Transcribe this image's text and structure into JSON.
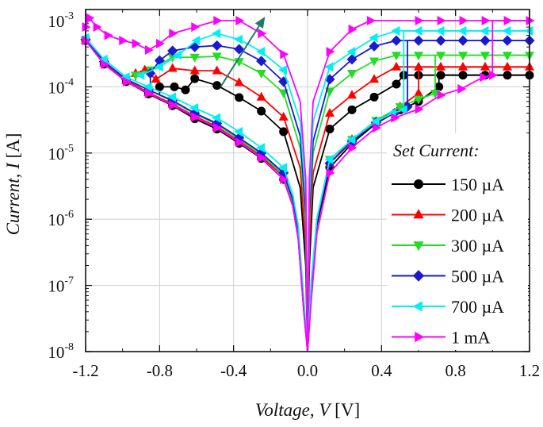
{
  "chart_data": {
    "type": "line",
    "title": "",
    "xlabel": {
      "text": "Voltage, V",
      "unit": "[V]"
    },
    "ylabel": {
      "text": "Current, I",
      "unit": "[A]"
    },
    "xlim": [
      -1.2,
      1.2
    ],
    "ylim": [
      1e-08,
      0.001
    ],
    "yscale": "log",
    "grid": true,
    "x_ticks": [
      "-1.2",
      "-0.8",
      "-0.4",
      "0.0",
      "0.4",
      "0.8",
      "1.2"
    ],
    "x_tick_values": [
      -1.2,
      -0.8,
      -0.4,
      0.0,
      0.4,
      0.8,
      1.2
    ],
    "y_ticks": [
      {
        "base": "10",
        "exp": "-3",
        "value": 0.001
      },
      {
        "base": "10",
        "exp": "-4",
        "value": 0.0001
      },
      {
        "base": "10",
        "exp": "-5",
        "value": 1e-05
      },
      {
        "base": "10",
        "exp": "-6",
        "value": 1e-06
      },
      {
        "base": "10",
        "exp": "-7",
        "value": 1e-07
      },
      {
        "base": "10",
        "exp": "-8",
        "value": 1e-08
      }
    ],
    "legend": {
      "title": "Set Current:",
      "position": "bottom-right"
    },
    "annotation": {
      "type": "arrow",
      "meaning": "increasing set current",
      "color": "#1e7a6a",
      "from": [
        -0.47,
        0.0001
      ],
      "to": [
        -0.23,
        0.00115
      ]
    },
    "series": [
      {
        "name": "150 µA",
        "color": "#000000",
        "marker": "circle",
        "compliance": 0.00015,
        "set_V": 0.71,
        "hrs_pos": [
          [
            0,
            1e-08
          ],
          [
            0.02,
            8e-08
          ],
          [
            0.05,
            8e-07
          ],
          [
            0.12,
            6e-06
          ],
          [
            0.24,
            1.4e-05
          ],
          [
            0.37,
            2.8e-05
          ],
          [
            0.5,
            4.5e-05
          ],
          [
            0.6,
            6e-05
          ],
          [
            0.71,
            0.0001
          ]
        ],
        "lrs_pos": [
          [
            0,
            1e-08
          ],
          [
            0.01,
            2e-07
          ],
          [
            0.03,
            3e-06
          ],
          [
            0.12,
            2.3e-05
          ],
          [
            0.24,
            4.5e-05
          ],
          [
            0.36,
            7e-05
          ],
          [
            0.48,
            0.00011
          ],
          [
            0.52,
            0.00015
          ]
        ],
        "lrs_neg": [
          [
            0,
            1e-08
          ],
          [
            -0.01,
            2e-07
          ],
          [
            -0.04,
            3e-06
          ],
          [
            -0.13,
            2.1e-05
          ],
          [
            -0.25,
            4.3e-05
          ],
          [
            -0.37,
            6.9e-05
          ],
          [
            -0.49,
            0.000105
          ],
          [
            -0.61,
            0.000133
          ],
          [
            -0.66,
            9e-05
          ],
          [
            -0.72,
            0.0001
          ],
          [
            -0.8,
            0.0001
          ]
        ],
        "hrs_neg": [
          [
            0,
            1e-08
          ],
          [
            -0.02,
            4e-08
          ],
          [
            -0.05,
            5e-07
          ],
          [
            -0.08,
            1.6e-06
          ],
          [
            -0.13,
            4e-06
          ],
          [
            -0.25,
            8.3e-06
          ],
          [
            -0.37,
            1.4e-05
          ],
          [
            -0.49,
            2.3e-05
          ],
          [
            -0.61,
            3.3e-05
          ],
          [
            -0.73,
            5.2e-05
          ],
          [
            -0.86,
            7.8e-05
          ],
          [
            -0.98,
            0.00012
          ],
          [
            -1.1,
            0.00022
          ],
          [
            -1.2,
            0.0005
          ]
        ]
      },
      {
        "name": "200 µA",
        "color": "#ff0000",
        "marker": "triangle-up",
        "compliance": 0.0002,
        "set_V": 0.6,
        "hrs_pos": [
          [
            0,
            1e-08
          ],
          [
            0.02,
            1e-07
          ],
          [
            0.05,
            1e-06
          ],
          [
            0.12,
            7e-06
          ],
          [
            0.24,
            1.6e-05
          ],
          [
            0.37,
            3e-05
          ],
          [
            0.5,
            5e-05
          ],
          [
            0.6,
            8e-05
          ]
        ],
        "lrs_pos": [
          [
            0,
            1e-08
          ],
          [
            0.01,
            4e-07
          ],
          [
            0.03,
            5e-06
          ],
          [
            0.12,
            4e-05
          ],
          [
            0.24,
            7.5e-05
          ],
          [
            0.36,
            0.00013
          ],
          [
            0.48,
            0.0002
          ]
        ],
        "lrs_neg": [
          [
            0,
            1e-08
          ],
          [
            -0.01,
            4e-07
          ],
          [
            -0.04,
            6e-06
          ],
          [
            -0.13,
            3.5e-05
          ],
          [
            -0.25,
            7e-05
          ],
          [
            -0.37,
            0.000116
          ],
          [
            -0.49,
            0.000175
          ],
          [
            -0.61,
            0.000175
          ],
          [
            -0.73,
            0.00019
          ],
          [
            -0.82,
            0.00013
          ],
          [
            -0.88,
            0.00018
          ],
          [
            -0.93,
            0.00016
          ]
        ],
        "hrs_neg": [
          [
            0,
            1e-08
          ],
          [
            -0.02,
            5e-08
          ],
          [
            -0.05,
            6e-07
          ],
          [
            -0.08,
            1.8e-06
          ],
          [
            -0.13,
            4.4e-06
          ],
          [
            -0.25,
            8.9e-06
          ],
          [
            -0.37,
            1.5e-05
          ],
          [
            -0.49,
            2.5e-05
          ],
          [
            -0.61,
            3.6e-05
          ],
          [
            -0.73,
            5.5e-05
          ],
          [
            -0.86,
            8.2e-05
          ],
          [
            -0.98,
            0.000125
          ],
          [
            -1.1,
            0.00023
          ],
          [
            -1.2,
            0.0005
          ]
        ]
      },
      {
        "name": "300 µA",
        "color": "#22dd22",
        "marker": "triangle-down",
        "compliance": 0.0003,
        "set_V": 0.69,
        "hrs_pos": [
          [
            0,
            1e-08
          ],
          [
            0.02,
            1e-07
          ],
          [
            0.05,
            1e-06
          ],
          [
            0.12,
            8e-06
          ],
          [
            0.24,
            1.6e-05
          ],
          [
            0.37,
            3.1e-05
          ],
          [
            0.5,
            5e-05
          ],
          [
            0.6,
            6.5e-05
          ],
          [
            0.69,
            8e-05
          ]
        ],
        "lrs_pos": [
          [
            0,
            1e-08
          ],
          [
            0.01,
            8e-07
          ],
          [
            0.03,
            1e-05
          ],
          [
            0.12,
            8.6e-05
          ],
          [
            0.24,
            0.00016
          ],
          [
            0.36,
            0.000245
          ],
          [
            0.48,
            0.0003
          ]
        ],
        "lrs_neg": [
          [
            0,
            1e-08
          ],
          [
            -0.01,
            8e-07
          ],
          [
            -0.04,
            1.2e-05
          ],
          [
            -0.13,
            8.1e-05
          ],
          [
            -0.25,
            0.00016
          ],
          [
            -0.37,
            0.00024
          ],
          [
            -0.49,
            0.00029
          ],
          [
            -0.61,
            0.00028
          ],
          [
            -0.73,
            0.00028
          ],
          [
            -0.85,
            0.00018
          ],
          [
            -0.93,
            0.00015
          ]
        ],
        "hrs_neg": [
          [
            0,
            1e-08
          ],
          [
            -0.02,
            5e-08
          ],
          [
            -0.05,
            6e-07
          ],
          [
            -0.08,
            1.9e-06
          ],
          [
            -0.13,
            4.6e-06
          ],
          [
            -0.25,
            9.5e-06
          ],
          [
            -0.37,
            1.6e-05
          ],
          [
            -0.49,
            2.7e-05
          ],
          [
            -0.61,
            3.9e-05
          ],
          [
            -0.73,
            6e-05
          ],
          [
            -0.86,
            9e-05
          ],
          [
            -0.98,
            0.00013
          ],
          [
            -1.1,
            0.00024
          ],
          [
            -1.2,
            0.00052
          ]
        ]
      },
      {
        "name": "500 µA",
        "color": "#1a1ad0",
        "marker": "diamond",
        "compliance": 0.0005,
        "set_V": 0.54,
        "hrs_pos": [
          [
            0,
            1e-08
          ],
          [
            0.02,
            1e-07
          ],
          [
            0.05,
            9e-07
          ],
          [
            0.12,
            7e-06
          ],
          [
            0.24,
            1.5e-05
          ],
          [
            0.37,
            2.9e-05
          ],
          [
            0.47,
            4e-05
          ],
          [
            0.54,
            5e-05
          ]
        ],
        "lrs_pos": [
          [
            0,
            1e-08
          ],
          [
            0.01,
            1.2e-06
          ],
          [
            0.03,
            1.5e-05
          ],
          [
            0.12,
            0.00013
          ],
          [
            0.24,
            0.00026
          ],
          [
            0.36,
            0.00041
          ],
          [
            0.48,
            0.0005
          ]
        ],
        "lrs_neg": [
          [
            0,
            1e-08
          ],
          [
            -0.01,
            1.2e-06
          ],
          [
            -0.04,
            1.8e-05
          ],
          [
            -0.13,
            0.00012
          ],
          [
            -0.25,
            0.000245
          ],
          [
            -0.37,
            0.00037
          ],
          [
            -0.49,
            0.00042
          ],
          [
            -0.61,
            0.0004
          ],
          [
            -0.73,
            0.00035
          ],
          [
            -0.8,
            0.00025
          ],
          [
            -0.85,
            0.00016
          ]
        ],
        "hrs_neg": [
          [
            0,
            1e-08
          ],
          [
            -0.02,
            5e-08
          ],
          [
            -0.05,
            7e-07
          ],
          [
            -0.08,
            2e-06
          ],
          [
            -0.13,
            5e-06
          ],
          [
            -0.25,
            1e-05
          ],
          [
            -0.37,
            1.7e-05
          ],
          [
            -0.49,
            2.8e-05
          ],
          [
            -0.61,
            4e-05
          ],
          [
            -0.73,
            6.2e-05
          ],
          [
            -0.86,
            9e-05
          ],
          [
            -0.98,
            0.00013
          ],
          [
            -1.1,
            0.00024
          ],
          [
            -1.2,
            0.00052
          ]
        ]
      },
      {
        "name": "700 µA",
        "color": "#00f0f0",
        "marker": "triangle-left",
        "compliance": 0.0007,
        "set_V": 0.52,
        "hrs_pos": [
          [
            0,
            1e-08
          ],
          [
            0.02,
            1.2e-07
          ],
          [
            0.05,
            1e-06
          ],
          [
            0.12,
            8e-06
          ],
          [
            0.24,
            1.6e-05
          ],
          [
            0.37,
            3e-05
          ],
          [
            0.46,
            4e-05
          ],
          [
            0.52,
            4.5e-05
          ]
        ],
        "lrs_pos": [
          [
            0,
            1e-08
          ],
          [
            0.01,
            2e-06
          ],
          [
            0.03,
            3e-05
          ],
          [
            0.12,
            0.0002
          ],
          [
            0.24,
            0.00034
          ],
          [
            0.36,
            0.00055
          ],
          [
            0.48,
            0.0007
          ]
        ],
        "lrs_neg": [
          [
            0,
            1e-08
          ],
          [
            -0.01,
            2e-06
          ],
          [
            -0.04,
            3e-05
          ],
          [
            -0.13,
            0.00018
          ],
          [
            -0.25,
            0.00034
          ],
          [
            -0.37,
            0.00052
          ],
          [
            -0.49,
            0.00064
          ],
          [
            -0.6,
            0.0005
          ],
          [
            -0.7,
            0.0003
          ],
          [
            -0.8,
            0.0002
          ],
          [
            -0.9,
            0.00015
          ]
        ],
        "hrs_neg": [
          [
            0,
            1e-08
          ],
          [
            -0.02,
            6e-08
          ],
          [
            -0.05,
            8e-07
          ],
          [
            -0.08,
            2.4e-06
          ],
          [
            -0.13,
            6e-06
          ],
          [
            -0.25,
            1.2e-05
          ],
          [
            -0.37,
            2.1e-05
          ],
          [
            -0.49,
            3.4e-05
          ],
          [
            -0.61,
            4.8e-05
          ],
          [
            -0.73,
            7e-05
          ],
          [
            -0.86,
            0.0001
          ],
          [
            -0.98,
            0.00014
          ],
          [
            -1.1,
            0.00026
          ],
          [
            -1.2,
            0.00055
          ]
        ]
      },
      {
        "name": "1 mA",
        "color": "#ff00ff",
        "marker": "triangle-right",
        "compliance": 0.001,
        "set_V": 1.0,
        "hrs_pos": [
          [
            0,
            1e-08
          ],
          [
            0.02,
            6e-08
          ],
          [
            0.05,
            6e-07
          ],
          [
            0.12,
            5e-06
          ],
          [
            0.24,
            1.2e-05
          ],
          [
            0.37,
            2.4e-05
          ],
          [
            0.47,
            3.4e-05
          ],
          [
            0.6,
            4.6e-05
          ],
          [
            0.72,
            7.5e-05
          ],
          [
            0.83,
            9.3e-05
          ],
          [
            0.95,
            0.00014
          ],
          [
            1.0,
            0.00015
          ]
        ],
        "lrs_pos": [
          [
            0,
            1e-08
          ],
          [
            0.01,
            4e-06
          ],
          [
            0.03,
            6e-05
          ],
          [
            0.12,
            0.00034
          ],
          [
            0.24,
            0.00074
          ],
          [
            0.34,
            0.001
          ]
        ],
        "lrs_neg": [
          [
            0,
            1e-08
          ],
          [
            -0.01,
            4e-06
          ],
          [
            -0.04,
            6e-05
          ],
          [
            -0.13,
            0.00031
          ],
          [
            -0.25,
            0.00064
          ],
          [
            -0.37,
            0.001
          ],
          [
            -0.49,
            0.001
          ],
          [
            -0.61,
            0.0008
          ],
          [
            -0.73,
            0.00064
          ],
          [
            -0.8,
            0.00045
          ],
          [
            -0.86,
            0.00036
          ],
          [
            -0.93,
            0.00045
          ],
          [
            -1.0,
            0.0005
          ],
          [
            -1.08,
            0.0006
          ],
          [
            -1.14,
            0.0008
          ],
          [
            -1.18,
            0.0011
          ],
          [
            -1.2,
            0.0008
          ]
        ],
        "hrs_neg": [
          [
            0,
            1e-08
          ],
          [
            -0.02,
            4e-08
          ],
          [
            -0.05,
            5e-07
          ],
          [
            -0.08,
            1.6e-06
          ],
          [
            -0.13,
            4e-06
          ],
          [
            -0.25,
            8.5e-06
          ],
          [
            -0.37,
            1.45e-05
          ],
          [
            -0.49,
            2.4e-05
          ],
          [
            -0.61,
            3.5e-05
          ],
          [
            -0.73,
            5.3e-05
          ],
          [
            -0.86,
            8e-05
          ],
          [
            -0.98,
            0.00012
          ],
          [
            -1.1,
            0.00022
          ],
          [
            -1.2,
            0.0005
          ]
        ]
      }
    ]
  }
}
